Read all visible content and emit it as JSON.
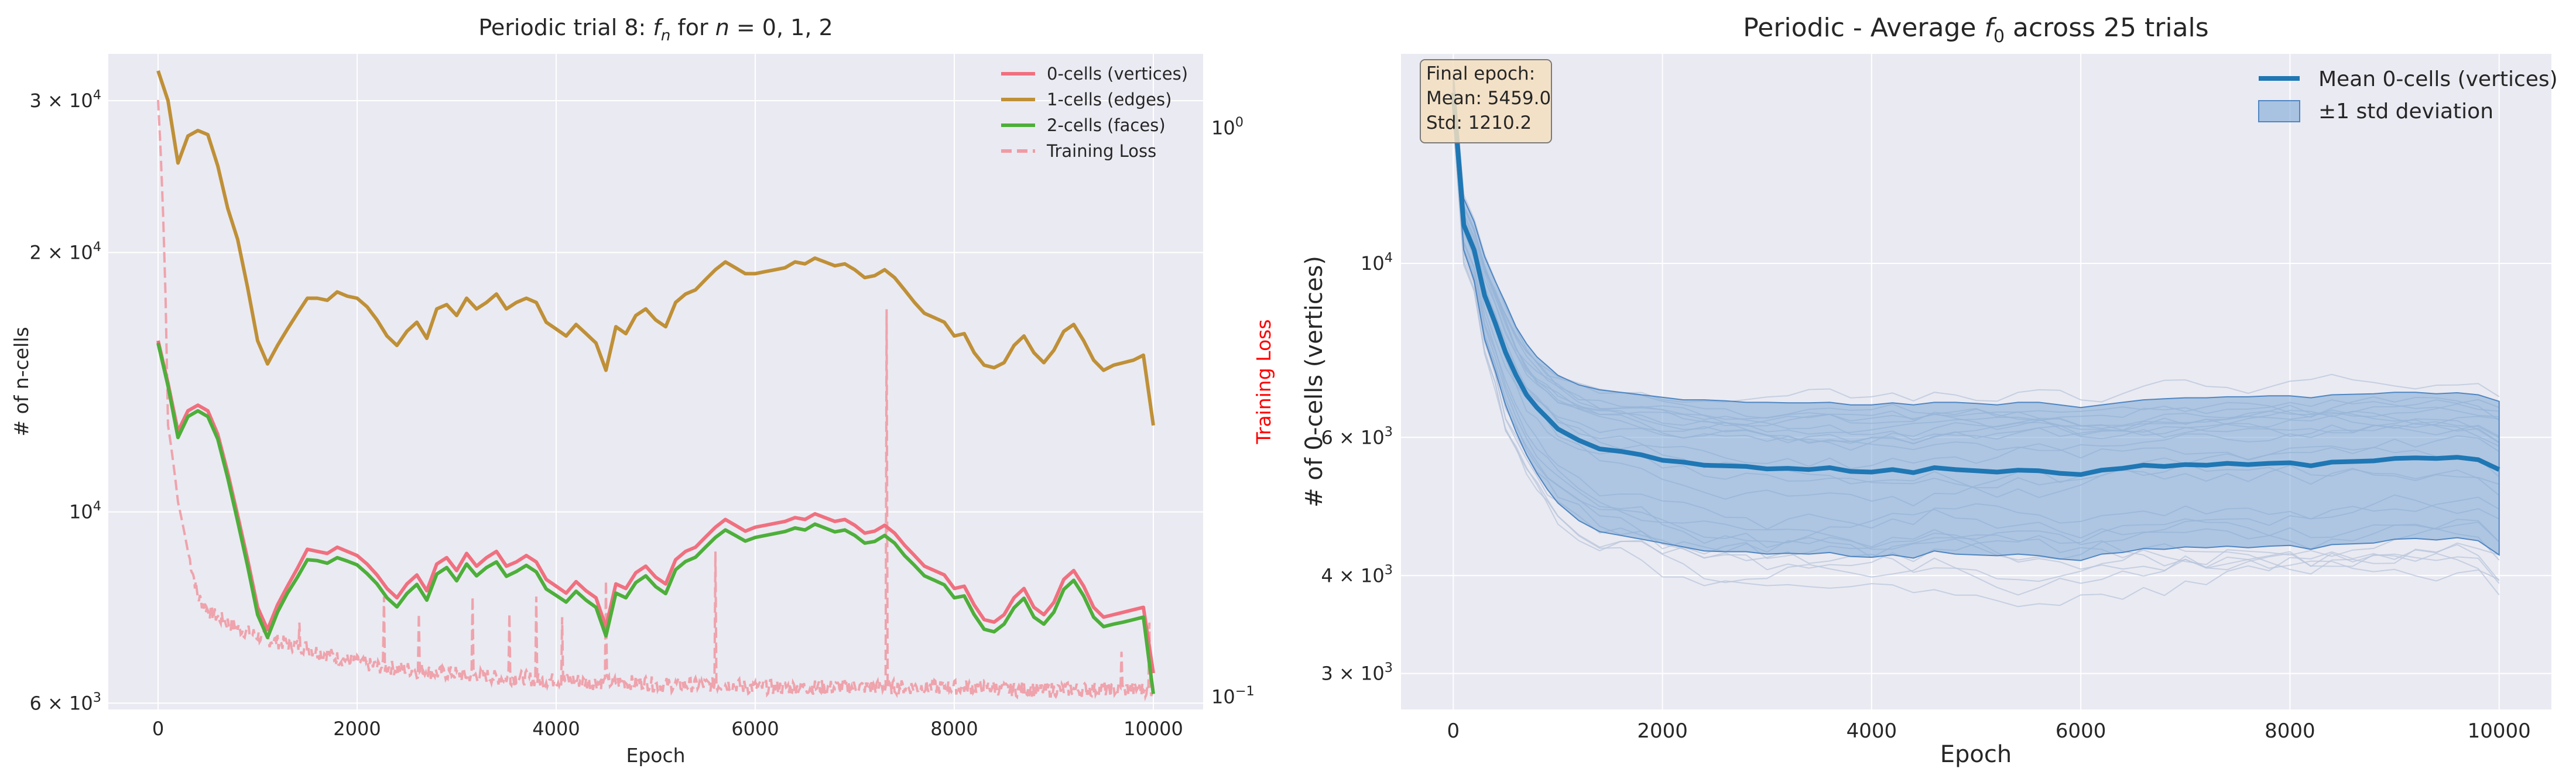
{
  "chart_data": [
    {
      "type": "line",
      "title": "Periodic trial 8: f_n for n = 0, 1, 2",
      "title_parts": {
        "prefix": "Periodic trial 8: ",
        "f": "f",
        "sub": "n",
        "suffix": " for ",
        "n": "n",
        "eq": " = 0, 1, 2"
      },
      "xlabel": "Epoch",
      "ylabel": "# of n-cells",
      "ylabel_right": "Training Loss",
      "xlim": [
        -500,
        10500
      ],
      "ylim": [
        5900,
        34000
      ],
      "yscale": "log",
      "ylim_right": [
        0.095,
        1.35
      ],
      "yscale_right": "log",
      "grid": true,
      "legend": "top-right",
      "xticks": [
        0,
        2000,
        4000,
        6000,
        8000,
        10000
      ],
      "xtick_labels": [
        "0",
        "2000",
        "4000",
        "6000",
        "8000",
        "10000"
      ],
      "yticks": [
        {
          "value": 6000,
          "base": "6 × 10",
          "exp": "3"
        },
        {
          "value": 10000,
          "base": "10",
          "exp": "4"
        },
        {
          "value": 20000,
          "base": "2 × 10",
          "exp": "4"
        },
        {
          "value": 30000,
          "base": "3 × 10",
          "exp": "4"
        }
      ],
      "yticks_right": [
        {
          "value": 0.1,
          "base": "10",
          "exp": "−1"
        },
        {
          "value": 1,
          "base": "10",
          "exp": "0"
        }
      ],
      "epochs": [
        0,
        100,
        200,
        300,
        400,
        500,
        600,
        700,
        800,
        900,
        1000,
        1100,
        1200,
        1300,
        1400,
        1500,
        1600,
        1700,
        1800,
        1900,
        2000,
        2100,
        2200,
        2300,
        2400,
        2500,
        2600,
        2700,
        2800,
        2900,
        3000,
        3100,
        3200,
        3300,
        3400,
        3500,
        3600,
        3700,
        3800,
        3900,
        4000,
        4100,
        4200,
        4300,
        4400,
        4500,
        4600,
        4700,
        4800,
        4900,
        5000,
        5100,
        5200,
        5300,
        5400,
        5500,
        5600,
        5700,
        5800,
        5900,
        6000,
        6100,
        6200,
        6300,
        6400,
        6500,
        6600,
        6700,
        6800,
        6900,
        7000,
        7100,
        7200,
        7300,
        7400,
        7500,
        7600,
        7700,
        7800,
        7900,
        8000,
        8100,
        8200,
        8300,
        8400,
        8500,
        8600,
        8700,
        8800,
        8900,
        9000,
        9100,
        9200,
        9300,
        9400,
        9500,
        9600,
        9700,
        9800,
        9900,
        10000
      ],
      "series": [
        {
          "name": "0-cells (vertices)",
          "color": "#f0707f",
          "style": "solid",
          "values": [
            15800,
            14100,
            12400,
            13100,
            13300,
            13100,
            12300,
            11100,
            9900,
            8800,
            7750,
            7300,
            7800,
            8200,
            8600,
            9050,
            9000,
            8950,
            9100,
            9000,
            8900,
            8700,
            8450,
            8150,
            7950,
            8250,
            8450,
            8100,
            8700,
            8850,
            8550,
            8950,
            8650,
            8850,
            9000,
            8650,
            8750,
            8900,
            8750,
            8350,
            8200,
            8050,
            8300,
            8100,
            7950,
            7350,
            8250,
            8150,
            8500,
            8650,
            8400,
            8250,
            8800,
            9000,
            9100,
            9350,
            9600,
            9800,
            9650,
            9500,
            9600,
            9650,
            9700,
            9750,
            9850,
            9800,
            9950,
            9850,
            9750,
            9800,
            9650,
            9450,
            9500,
            9650,
            9450,
            9150,
            8900,
            8650,
            8550,
            8450,
            8150,
            8200,
            7800,
            7500,
            7450,
            7600,
            7950,
            8150,
            7750,
            7600,
            7850,
            8350,
            8550,
            8200,
            7750,
            7550,
            7600,
            7650,
            7700,
            7750,
            6500
          ]
        },
        {
          "name": "1-cells (edges)",
          "color": "#bf9037",
          "style": "solid",
          "values": [
            32500,
            30000,
            25400,
            27300,
            27700,
            27400,
            25200,
            22500,
            20700,
            18200,
            15800,
            14850,
            15600,
            16300,
            17000,
            17700,
            17700,
            17600,
            18000,
            17800,
            17700,
            17300,
            16700,
            16000,
            15600,
            16200,
            16600,
            15900,
            17200,
            17400,
            16900,
            17700,
            17200,
            17500,
            17900,
            17200,
            17500,
            17700,
            17500,
            16600,
            16300,
            16000,
            16500,
            16100,
            15700,
            14600,
            16400,
            16100,
            16900,
            17200,
            16700,
            16400,
            17500,
            17900,
            18100,
            18600,
            19100,
            19500,
            19200,
            18900,
            18900,
            19000,
            19100,
            19200,
            19500,
            19400,
            19700,
            19500,
            19300,
            19400,
            19100,
            18700,
            18800,
            19100,
            18700,
            18100,
            17500,
            17000,
            16800,
            16600,
            16000,
            16100,
            15300,
            14800,
            14700,
            14900,
            15600,
            16000,
            15300,
            14900,
            15400,
            16200,
            16500,
            15800,
            15000,
            14600,
            14800,
            14900,
            15000,
            15200,
            12600
          ]
        },
        {
          "name": "2-cells (faces)",
          "color": "#4daf3a",
          "style": "solid",
          "values": [
            15700,
            14000,
            12200,
            12900,
            13100,
            12900,
            12150,
            10950,
            9750,
            8650,
            7600,
            7150,
            7650,
            8050,
            8400,
            8800,
            8780,
            8720,
            8850,
            8770,
            8680,
            8480,
            8250,
            7950,
            7760,
            8040,
            8240,
            7900,
            8470,
            8620,
            8320,
            8700,
            8430,
            8620,
            8750,
            8420,
            8530,
            8670,
            8520,
            8140,
            8000,
            7860,
            8090,
            7900,
            7750,
            7180,
            8050,
            7950,
            8280,
            8430,
            8190,
            8040,
            8570,
            8760,
            8860,
            9100,
            9340,
            9530,
            9390,
            9250,
            9340,
            9390,
            9440,
            9490,
            9580,
            9530,
            9680,
            9580,
            9480,
            9530,
            9390,
            9200,
            9240,
            9390,
            9200,
            8900,
            8670,
            8430,
            8330,
            8230,
            7950,
            7990,
            7600,
            7310,
            7260,
            7410,
            7740,
            7940,
            7550,
            7410,
            7650,
            8130,
            8330,
            7990,
            7550,
            7360,
            7410,
            7450,
            7500,
            7550,
            6150
          ]
        },
        {
          "name": "Training Loss",
          "color": "#f09ba4",
          "style": "dashed",
          "axis": "right",
          "note": "per-epoch training loss, noisy with spikes",
          "values": [
            1.12,
            0.3,
            0.22,
            0.18,
            0.15,
            0.142,
            0.138,
            0.135,
            0.132,
            0.13,
            0.128,
            0.126,
            0.125,
            0.124,
            0.123,
            0.122,
            0.12,
            0.119,
            0.117,
            0.116,
            0.115,
            0.114,
            0.113,
            0.113,
            0.112,
            0.112,
            0.111,
            0.111,
            0.11,
            0.11,
            0.11,
            0.109,
            0.109,
            0.109,
            0.108,
            0.108,
            0.108,
            0.108,
            0.107,
            0.107,
            0.107,
            0.107,
            0.107,
            0.106,
            0.106,
            0.106,
            0.106,
            0.106,
            0.106,
            0.106,
            0.105,
            0.105,
            0.105,
            0.105,
            0.105,
            0.105,
            0.105,
            0.105,
            0.105,
            0.104,
            0.104,
            0.104,
            0.104,
            0.104,
            0.104,
            0.104,
            0.104,
            0.104,
            0.104,
            0.104,
            0.104,
            0.104,
            0.104,
            0.104,
            0.104,
            0.104,
            0.104,
            0.104,
            0.104,
            0.104,
            0.104,
            0.104,
            0.104,
            0.104,
            0.104,
            0.103,
            0.103,
            0.103,
            0.103,
            0.103,
            0.103,
            0.103,
            0.103,
            0.103,
            0.103,
            0.103,
            0.103,
            0.103,
            0.103,
            0.103,
            0.103
          ],
          "spikes": [
            {
              "epoch": 1420,
              "value": 0.135
            },
            {
              "epoch": 2270,
              "value": 0.15
            },
            {
              "epoch": 2620,
              "value": 0.14
            },
            {
              "epoch": 3160,
              "value": 0.15
            },
            {
              "epoch": 3530,
              "value": 0.14
            },
            {
              "epoch": 3800,
              "value": 0.15
            },
            {
              "epoch": 4060,
              "value": 0.138
            },
            {
              "epoch": 4500,
              "value": 0.16
            },
            {
              "epoch": 5600,
              "value": 0.18
            },
            {
              "epoch": 7320,
              "value": 0.48
            },
            {
              "epoch": 9680,
              "value": 0.12
            },
            {
              "epoch": 9960,
              "value": 0.135
            }
          ]
        }
      ]
    },
    {
      "type": "line",
      "title": "Periodic - Average f_0 across 25 trials",
      "title_parts": {
        "prefix": "Periodic - Average ",
        "f": "f",
        "sub": "0",
        "suffix": " across 25 trials"
      },
      "xlabel": "Epoch",
      "ylabel": "# of 0-cells (vertices)",
      "xlim": [
        -500,
        10500
      ],
      "ylim": [
        2700,
        18500
      ],
      "yscale": "log",
      "grid": true,
      "legend": "top-right",
      "xticks": [
        0,
        2000,
        4000,
        6000,
        8000,
        10000
      ],
      "xtick_labels": [
        "0",
        "2000",
        "4000",
        "6000",
        "8000",
        "10000"
      ],
      "yticks": [
        {
          "value": 3000,
          "base": "3 × 10",
          "exp": "3"
        },
        {
          "value": 4000,
          "base": "4 × 10",
          "exp": "3"
        },
        {
          "value": 6000,
          "base": "6 × 10",
          "exp": "3"
        },
        {
          "value": 10000,
          "base": "10",
          "exp": "4"
        }
      ],
      "epochs": [
        0,
        100,
        200,
        300,
        400,
        500,
        600,
        700,
        800,
        900,
        1000,
        1200,
        1400,
        1600,
        1800,
        2000,
        2200,
        2400,
        2600,
        2800,
        3000,
        3200,
        3400,
        3600,
        3800,
        4000,
        4200,
        4400,
        4600,
        4800,
        5000,
        5200,
        5400,
        5600,
        5800,
        6000,
        6200,
        6400,
        6600,
        6800,
        7000,
        7200,
        7400,
        7600,
        7800,
        8000,
        8200,
        8400,
        8600,
        8800,
        9000,
        9200,
        9400,
        9600,
        9800,
        10000
      ],
      "series": [
        {
          "name": "Mean 0-cells (vertices)",
          "color": "#1f77b4",
          "style": "solid",
          "values": [
            16500,
            11200,
            10400,
            9100,
            8400,
            7700,
            7200,
            6800,
            6550,
            6350,
            6150,
            5950,
            5800,
            5760,
            5700,
            5610,
            5580,
            5530,
            5520,
            5510,
            5470,
            5480,
            5460,
            5490,
            5430,
            5420,
            5460,
            5410,
            5490,
            5460,
            5440,
            5420,
            5450,
            5440,
            5400,
            5380,
            5450,
            5480,
            5530,
            5510,
            5540,
            5530,
            5560,
            5540,
            5560,
            5570,
            5520,
            5580,
            5590,
            5600,
            5640,
            5650,
            5640,
            5660,
            5620,
            5459
          ]
        },
        {
          "name": "±1 std deviation",
          "color": "#7ba7d6",
          "style": "band",
          "upper": [
            17500,
            12100,
            11300,
            10200,
            9500,
            8900,
            8300,
            7900,
            7600,
            7400,
            7200,
            7000,
            6900,
            6850,
            6800,
            6750,
            6700,
            6700,
            6680,
            6650,
            6650,
            6640,
            6640,
            6650,
            6600,
            6600,
            6640,
            6600,
            6650,
            6650,
            6630,
            6600,
            6650,
            6650,
            6600,
            6550,
            6600,
            6650,
            6700,
            6720,
            6740,
            6740,
            6760,
            6760,
            6780,
            6780,
            6740,
            6800,
            6810,
            6820,
            6850,
            6850,
            6820,
            6840,
            6800,
            6670
          ],
          "lower": [
            15500,
            10400,
            9500,
            8000,
            7300,
            6600,
            6100,
            5700,
            5400,
            5150,
            4950,
            4700,
            4550,
            4500,
            4450,
            4400,
            4350,
            4300,
            4290,
            4290,
            4260,
            4270,
            4260,
            4280,
            4230,
            4220,
            4250,
            4210,
            4300,
            4260,
            4250,
            4240,
            4260,
            4240,
            4200,
            4180,
            4260,
            4280,
            4330,
            4320,
            4350,
            4340,
            4360,
            4340,
            4360,
            4370,
            4320,
            4380,
            4390,
            4400,
            4450,
            4460,
            4440,
            4470,
            4430,
            4250
          ]
        }
      ],
      "individual_trials": {
        "count": 25,
        "color": "#b8c6db",
        "note": "faint per-trial curves"
      },
      "annotation": {
        "line1": "Final epoch:",
        "line2": "Mean: 5459.0",
        "line3": "Std: 1210.2",
        "position": "top-left",
        "background": "#f5dfc0"
      }
    }
  ],
  "colors": {
    "plot_background": "#eaeaf2",
    "grid": "#ffffff",
    "right_axis_label": "#ff0000"
  }
}
